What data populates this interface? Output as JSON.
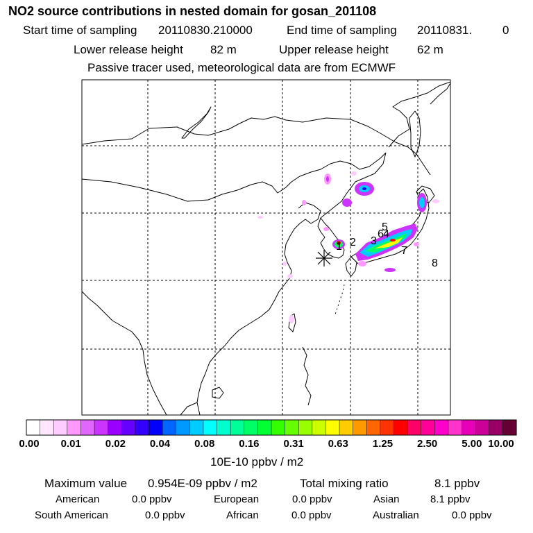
{
  "header": {
    "title": "NO2 source contributions in nested domain for gosan_201108",
    "start_label": "Start time of sampling",
    "start_value": "20110830.210000",
    "end_label": "End time of sampling",
    "end_value": "20110831.",
    "end_hour": "0",
    "lower_label": "Lower release height",
    "lower_value": "82 m",
    "upper_label": "Upper release height",
    "upper_value": "62 m",
    "note": "Passive tracer used, meteorological data are from ECMWF"
  },
  "map": {
    "source_marker": "asterisk-icon",
    "site_labels": [
      "1",
      "2",
      "3",
      "4",
      "5",
      "6",
      "7",
      "8"
    ],
    "colors": {
      "coast": "#000000",
      "grid": "#000000",
      "plume_low": "#ff99ff",
      "plume_mid": "#00ccff",
      "plume_high": "#ffff00",
      "plume_peak": "#ff0000"
    }
  },
  "legend": {
    "colors": [
      "#ffffff",
      "#ffe6ff",
      "#ffccff",
      "#ff99ff",
      "#e066ff",
      "#cc33ff",
      "#9900ff",
      "#6600ff",
      "#3300ff",
      "#0000ff",
      "#0066ff",
      "#0099ff",
      "#00ccff",
      "#00ffff",
      "#00ffcc",
      "#00ff99",
      "#00ff66",
      "#00ff33",
      "#33ff00",
      "#66ff00",
      "#99ff00",
      "#ccff00",
      "#ffff00",
      "#ffcc00",
      "#ff9900",
      "#ff6600",
      "#ff3300",
      "#ff0000",
      "#ff0066",
      "#ff0099",
      "#ff00cc",
      "#ff33cc",
      "#e600b8",
      "#cc0099",
      "#990066",
      "#660033"
    ],
    "ticks": [
      "0.00",
      "0.01",
      "0.02",
      "0.04",
      "0.08",
      "0.16",
      "0.31",
      "0.63",
      "1.25",
      "2.50",
      "5.00",
      "10.00"
    ],
    "unit": "10E-10 ppbv / m2"
  },
  "stats": {
    "max_label": "Maximum value",
    "max_value": "0.954E-09 ppbv / m2",
    "total_label": "Total mixing ratio",
    "total_value": "8.1 ppbv",
    "regions": [
      {
        "name": "American",
        "value": "0.0 ppbv"
      },
      {
        "name": "European",
        "value": "0.0 ppbv"
      },
      {
        "name": "Asian",
        "value": "8.1 ppbv"
      },
      {
        "name": "South American",
        "value": "0.0 ppbv"
      },
      {
        "name": "African",
        "value": "0.0 ppbv"
      },
      {
        "name": "Australian",
        "value": "0.0 ppbv"
      }
    ]
  }
}
